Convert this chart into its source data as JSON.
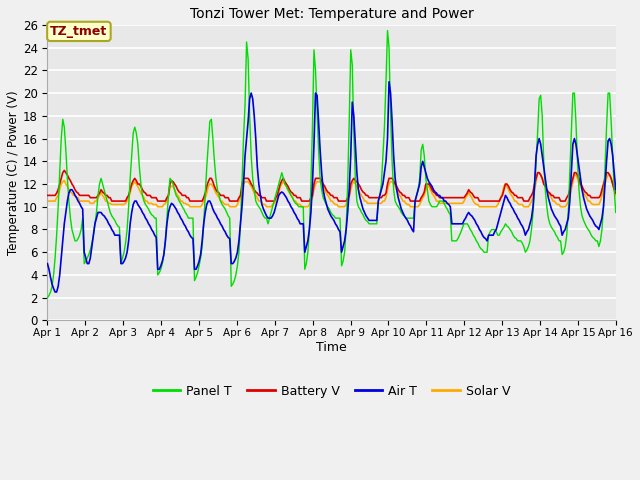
{
  "title": "Tonzi Tower Met: Temperature and Power",
  "xlabel": "Time",
  "ylabel": "Temperature (C) / Power (V)",
  "annotation": "TZ_tmet",
  "ylim": [
    0,
    26
  ],
  "yticks": [
    0,
    2,
    4,
    6,
    8,
    10,
    12,
    14,
    16,
    18,
    20,
    22,
    24,
    26
  ],
  "xtick_labels": [
    "Apr 1",
    "Apr 2",
    "Apr 3",
    "Apr 4",
    "Apr 5",
    "Apr 6",
    "Apr 7",
    "Apr 8",
    "Apr 9",
    "Apr 10",
    "Apr 11",
    "Apr 12",
    "Apr 13",
    "Apr 14",
    "Apr 15",
    "Apr 16"
  ],
  "colors": {
    "panel_t": "#00dd00",
    "battery_v": "#dd0000",
    "air_t": "#0000dd",
    "solar_v": "#ffaa00"
  },
  "legend": [
    "Panel T",
    "Battery V",
    "Air T",
    "Solar V"
  ],
  "fig_bg": "#f0f0f0",
  "plot_bg": "#e8e8e8",
  "grid_color": "#ffffff",
  "panel_t": [
    2.0,
    2.2,
    2.5,
    3.0,
    4.0,
    5.5,
    7.5,
    10.0,
    13.0,
    16.0,
    17.7,
    17.0,
    15.0,
    12.5,
    10.5,
    9.0,
    8.0,
    7.5,
    7.0,
    7.0,
    7.2,
    7.5,
    8.0,
    9.0,
    5.0,
    5.2,
    5.5,
    5.8,
    6.2,
    6.8,
    7.5,
    8.5,
    9.5,
    11.0,
    12.0,
    12.5,
    12.0,
    11.5,
    11.0,
    10.5,
    10.0,
    9.5,
    9.2,
    9.0,
    8.8,
    8.5,
    8.3,
    8.2,
    5.0,
    5.5,
    6.0,
    6.8,
    8.0,
    10.0,
    12.5,
    14.5,
    16.5,
    17.0,
    16.5,
    15.5,
    13.5,
    12.0,
    11.0,
    10.5,
    10.2,
    10.0,
    9.8,
    9.5,
    9.3,
    9.2,
    9.0,
    9.0,
    4.0,
    4.2,
    4.5,
    5.0,
    5.8,
    7.0,
    9.0,
    11.0,
    12.5,
    12.3,
    12.0,
    11.5,
    11.0,
    10.8,
    10.5,
    10.3,
    10.0,
    9.8,
    9.5,
    9.3,
    9.0,
    9.0,
    9.0,
    9.0,
    3.5,
    3.8,
    4.2,
    4.8,
    5.5,
    6.5,
    8.5,
    11.0,
    13.5,
    15.5,
    17.5,
    17.7,
    16.0,
    14.0,
    12.5,
    11.5,
    11.0,
    10.5,
    10.2,
    10.0,
    9.8,
    9.5,
    9.2,
    9.0,
    3.0,
    3.2,
    3.5,
    4.0,
    4.8,
    6.0,
    8.5,
    12.0,
    16.0,
    19.0,
    24.5,
    23.0,
    18.0,
    14.5,
    12.5,
    11.5,
    10.5,
    10.2,
    10.0,
    9.8,
    9.5,
    9.2,
    9.0,
    9.0,
    8.5,
    9.0,
    9.5,
    10.0,
    10.5,
    11.0,
    11.5,
    12.0,
    12.5,
    13.0,
    12.5,
    12.0,
    11.8,
    11.5,
    11.3,
    11.0,
    10.8,
    10.5,
    10.3,
    10.2,
    10.0,
    10.0,
    10.0,
    10.0,
    4.5,
    5.0,
    6.0,
    8.0,
    12.0,
    17.0,
    23.8,
    22.0,
    18.5,
    15.0,
    12.5,
    11.5,
    10.8,
    10.5,
    10.2,
    10.0,
    9.8,
    9.5,
    9.3,
    9.2,
    9.0,
    9.0,
    9.0,
    9.0,
    4.8,
    5.2,
    6.0,
    8.0,
    12.0,
    17.5,
    23.8,
    22.5,
    16.5,
    12.5,
    10.5,
    10.0,
    9.8,
    9.5,
    9.3,
    9.0,
    8.8,
    8.7,
    8.5,
    8.5,
    8.5,
    8.5,
    8.5,
    8.5,
    10.5,
    11.0,
    12.0,
    14.5,
    17.0,
    21.0,
    25.5,
    24.0,
    18.0,
    14.0,
    11.5,
    10.5,
    10.2,
    10.0,
    9.8,
    9.5,
    9.3,
    9.2,
    9.0,
    9.0,
    9.0,
    9.0,
    9.0,
    9.0,
    10.5,
    11.0,
    11.5,
    12.5,
    15.0,
    15.5,
    14.5,
    12.5,
    11.5,
    10.5,
    10.2,
    10.0,
    10.0,
    10.0,
    10.0,
    10.2,
    10.5,
    10.5,
    10.5,
    10.3,
    10.0,
    9.8,
    9.5,
    9.3,
    7.0,
    7.0,
    7.0,
    7.0,
    7.2,
    7.5,
    7.8,
    8.2,
    8.5,
    8.5,
    8.5,
    8.3,
    8.0,
    7.8,
    7.5,
    7.3,
    7.0,
    6.8,
    6.5,
    6.3,
    6.2,
    6.0,
    6.0,
    6.0,
    7.5,
    7.8,
    8.0,
    8.0,
    8.0,
    7.8,
    7.5,
    7.5,
    7.8,
    8.0,
    8.2,
    8.5,
    8.3,
    8.2,
    8.0,
    7.8,
    7.5,
    7.3,
    7.2,
    7.0,
    7.0,
    7.0,
    6.8,
    6.5,
    6.0,
    6.2,
    6.5,
    7.0,
    8.0,
    9.5,
    11.5,
    14.0,
    16.5,
    19.5,
    19.8,
    18.0,
    14.0,
    11.5,
    10.0,
    9.0,
    8.5,
    8.2,
    8.0,
    7.8,
    7.5,
    7.3,
    7.0,
    7.0,
    5.8,
    6.0,
    6.5,
    7.5,
    9.5,
    13.0,
    16.5,
    20.0,
    20.0,
    17.5,
    14.0,
    11.5,
    10.0,
    9.2,
    8.8,
    8.5,
    8.2,
    8.0,
    7.8,
    7.5,
    7.3,
    7.2,
    7.0,
    7.0,
    6.5,
    7.0,
    8.0,
    10.0,
    13.5,
    17.0,
    20.0,
    20.0,
    17.5,
    14.5,
    11.5,
    9.5
  ],
  "battery_v": [
    11.0,
    11.0,
    11.0,
    11.0,
    11.0,
    11.0,
    11.2,
    11.5,
    12.0,
    12.5,
    13.0,
    13.2,
    13.0,
    12.8,
    12.5,
    12.3,
    12.0,
    11.8,
    11.5,
    11.3,
    11.2,
    11.0,
    11.0,
    11.0,
    11.0,
    11.0,
    11.0,
    11.0,
    10.8,
    10.8,
    10.8,
    10.8,
    10.8,
    11.0,
    11.2,
    11.5,
    11.3,
    11.2,
    11.0,
    11.0,
    10.8,
    10.8,
    10.5,
    10.5,
    10.5,
    10.5,
    10.5,
    10.5,
    10.5,
    10.5,
    10.5,
    10.5,
    10.8,
    11.0,
    11.5,
    12.0,
    12.3,
    12.5,
    12.3,
    12.0,
    12.0,
    11.8,
    11.5,
    11.3,
    11.2,
    11.0,
    11.0,
    11.0,
    10.8,
    10.8,
    10.8,
    10.8,
    10.5,
    10.5,
    10.5,
    10.5,
    10.5,
    10.5,
    10.8,
    11.0,
    12.0,
    12.3,
    12.2,
    12.0,
    11.8,
    11.5,
    11.3,
    11.2,
    11.0,
    11.0,
    11.0,
    10.8,
    10.8,
    10.5,
    10.5,
    10.5,
    10.5,
    10.5,
    10.5,
    10.5,
    10.5,
    10.5,
    10.8,
    11.2,
    11.8,
    12.2,
    12.5,
    12.5,
    12.2,
    11.8,
    11.5,
    11.3,
    11.2,
    11.0,
    11.0,
    11.0,
    10.8,
    10.8,
    10.8,
    10.5,
    10.5,
    10.5,
    10.5,
    10.5,
    10.5,
    10.8,
    11.0,
    12.0,
    12.5,
    12.5,
    12.5,
    12.5,
    12.3,
    12.0,
    11.8,
    11.5,
    11.3,
    11.2,
    11.0,
    11.0,
    10.8,
    10.8,
    10.8,
    10.5,
    10.5,
    10.5,
    10.5,
    10.5,
    10.5,
    10.8,
    11.0,
    11.5,
    12.0,
    12.3,
    12.5,
    12.2,
    12.0,
    11.8,
    11.5,
    11.3,
    11.2,
    11.0,
    11.0,
    10.8,
    10.8,
    10.8,
    10.5,
    10.5,
    10.5,
    10.5,
    10.5,
    10.5,
    10.8,
    11.0,
    12.0,
    12.5,
    12.5,
    12.5,
    12.5,
    12.3,
    12.0,
    11.8,
    11.5,
    11.3,
    11.2,
    11.0,
    11.0,
    10.8,
    10.8,
    10.8,
    10.5,
    10.5,
    10.5,
    10.5,
    10.5,
    10.5,
    10.8,
    11.0,
    12.0,
    12.3,
    12.5,
    12.3,
    12.2,
    12.0,
    11.8,
    11.5,
    11.3,
    11.2,
    11.0,
    11.0,
    10.8,
    10.8,
    10.8,
    10.8,
    10.8,
    10.8,
    10.8,
    10.8,
    10.8,
    11.0,
    11.0,
    11.2,
    12.0,
    12.5,
    12.5,
    12.5,
    12.3,
    12.0,
    11.8,
    11.5,
    11.3,
    11.2,
    11.0,
    11.0,
    10.8,
    10.8,
    10.8,
    10.5,
    10.5,
    10.5,
    10.5,
    10.5,
    10.5,
    10.5,
    10.8,
    11.0,
    11.3,
    12.0,
    12.0,
    12.0,
    11.8,
    11.5,
    11.3,
    11.2,
    11.0,
    11.0,
    10.8,
    10.8,
    10.8,
    10.8,
    10.8,
    10.8,
    10.8,
    10.8,
    10.8,
    10.8,
    10.8,
    10.8,
    10.8,
    10.8,
    10.8,
    10.8,
    10.8,
    11.0,
    11.2,
    11.5,
    11.3,
    11.2,
    11.0,
    10.8,
    10.8,
    10.8,
    10.5,
    10.5,
    10.5,
    10.5,
    10.5,
    10.5,
    10.5,
    10.5,
    10.5,
    10.5,
    10.5,
    10.5,
    10.5,
    10.5,
    10.8,
    11.0,
    11.5,
    12.0,
    12.0,
    11.8,
    11.5,
    11.3,
    11.2,
    11.0,
    11.0,
    10.8,
    10.8,
    10.8,
    10.8,
    10.5,
    10.5,
    10.5,
    10.5,
    10.8,
    11.0,
    11.3,
    12.0,
    12.5,
    13.0,
    13.0,
    12.8,
    12.5,
    12.0,
    11.8,
    11.5,
    11.3,
    11.2,
    11.0,
    11.0,
    10.8,
    10.8,
    10.8,
    10.8,
    10.5,
    10.5,
    10.5,
    10.5,
    10.8,
    11.0,
    11.5,
    12.0,
    12.5,
    13.0,
    13.0,
    12.8,
    12.5,
    12.0,
    11.8,
    11.5,
    11.3,
    11.2,
    11.0,
    11.0,
    10.8,
    10.8,
    10.8,
    10.8,
    10.8,
    10.8,
    11.0,
    11.5,
    12.0,
    12.5,
    13.0,
    13.0,
    12.8,
    12.5,
    12.0,
    11.5,
    11.2
  ],
  "air_t": [
    5.0,
    4.5,
    3.8,
    3.2,
    2.8,
    2.5,
    2.5,
    3.0,
    4.0,
    5.5,
    7.0,
    8.5,
    9.5,
    10.5,
    11.2,
    11.5,
    11.5,
    11.3,
    11.0,
    10.8,
    10.5,
    10.3,
    10.0,
    9.8,
    6.0,
    5.5,
    5.0,
    5.0,
    5.5,
    6.5,
    7.5,
    8.5,
    9.0,
    9.5,
    9.5,
    9.5,
    9.3,
    9.2,
    9.0,
    8.8,
    8.5,
    8.3,
    8.0,
    7.8,
    7.5,
    7.5,
    7.5,
    7.5,
    5.0,
    5.0,
    5.2,
    5.5,
    6.0,
    7.0,
    8.5,
    9.5,
    10.2,
    10.5,
    10.5,
    10.2,
    10.0,
    9.8,
    9.5,
    9.3,
    9.0,
    8.8,
    8.5,
    8.3,
    8.0,
    7.8,
    7.5,
    7.3,
    4.5,
    4.5,
    4.8,
    5.2,
    5.8,
    7.0,
    8.5,
    9.5,
    10.0,
    10.3,
    10.2,
    10.0,
    9.8,
    9.5,
    9.3,
    9.0,
    8.8,
    8.5,
    8.3,
    8.0,
    7.8,
    7.5,
    7.3,
    7.2,
    4.5,
    4.5,
    4.8,
    5.2,
    5.8,
    7.0,
    8.5,
    9.5,
    10.2,
    10.5,
    10.5,
    10.2,
    9.8,
    9.5,
    9.3,
    9.0,
    8.8,
    8.5,
    8.3,
    8.0,
    7.8,
    7.5,
    7.3,
    7.2,
    5.0,
    5.0,
    5.2,
    5.5,
    6.0,
    7.0,
    8.5,
    10.0,
    12.0,
    14.5,
    16.0,
    17.5,
    19.5,
    20.0,
    19.5,
    18.0,
    16.0,
    13.5,
    12.0,
    11.0,
    10.2,
    9.8,
    9.5,
    9.2,
    9.0,
    9.0,
    9.0,
    9.2,
    9.5,
    10.0,
    10.5,
    11.0,
    11.2,
    11.3,
    11.2,
    11.0,
    10.8,
    10.5,
    10.3,
    10.0,
    9.8,
    9.5,
    9.3,
    9.0,
    8.8,
    8.5,
    8.5,
    8.5,
    6.0,
    6.5,
    7.0,
    8.0,
    9.5,
    12.0,
    15.5,
    20.0,
    19.8,
    17.5,
    15.0,
    13.0,
    11.5,
    10.8,
    10.3,
    9.8,
    9.5,
    9.2,
    9.0,
    8.8,
    8.5,
    8.3,
    8.0,
    7.8,
    6.0,
    6.5,
    7.0,
    8.0,
    9.5,
    11.5,
    14.5,
    19.2,
    18.0,
    15.5,
    13.0,
    11.5,
    10.8,
    10.3,
    9.8,
    9.5,
    9.2,
    9.0,
    8.8,
    8.8,
    8.8,
    8.8,
    8.8,
    8.8,
    10.5,
    11.0,
    11.5,
    12.0,
    13.0,
    14.0,
    16.0,
    21.0,
    20.0,
    17.5,
    14.5,
    12.5,
    11.5,
    10.8,
    10.3,
    9.8,
    9.5,
    9.2,
    9.0,
    8.8,
    8.5,
    8.3,
    8.0,
    7.8,
    10.5,
    11.0,
    11.5,
    12.0,
    13.5,
    14.0,
    13.5,
    13.0,
    12.5,
    12.2,
    12.0,
    11.8,
    11.5,
    11.3,
    11.2,
    11.0,
    11.0,
    10.8,
    10.8,
    10.5,
    10.5,
    10.3,
    10.2,
    10.0,
    8.5,
    8.5,
    8.5,
    8.5,
    8.5,
    8.5,
    8.5,
    8.5,
    8.8,
    9.0,
    9.3,
    9.5,
    9.3,
    9.2,
    9.0,
    8.8,
    8.5,
    8.3,
    8.0,
    7.8,
    7.5,
    7.3,
    7.2,
    7.0,
    7.5,
    7.5,
    7.5,
    7.5,
    7.8,
    8.0,
    8.5,
    9.0,
    9.5,
    10.0,
    10.5,
    11.0,
    10.8,
    10.5,
    10.3,
    10.0,
    9.8,
    9.5,
    9.3,
    9.0,
    8.8,
    8.5,
    8.3,
    8.0,
    7.5,
    7.8,
    8.0,
    8.5,
    9.0,
    10.0,
    12.0,
    14.5,
    15.5,
    16.0,
    15.5,
    14.5,
    13.5,
    12.5,
    11.5,
    10.8,
    10.3,
    9.8,
    9.5,
    9.2,
    9.0,
    8.8,
    8.5,
    8.3,
    7.5,
    7.8,
    8.0,
    8.5,
    9.0,
    10.5,
    13.0,
    15.5,
    16.0,
    15.5,
    14.5,
    13.5,
    12.5,
    11.5,
    10.8,
    10.3,
    9.8,
    9.5,
    9.2,
    9.0,
    8.8,
    8.5,
    8.3,
    8.2,
    8.0,
    8.5,
    9.0,
    10.0,
    12.0,
    14.0,
    15.8,
    16.0,
    15.5,
    14.5,
    13.0,
    11.5
  ],
  "solar_v": [
    10.5,
    10.5,
    10.5,
    10.5,
    10.5,
    10.5,
    10.8,
    11.0,
    11.5,
    12.0,
    12.2,
    12.3,
    12.0,
    11.8,
    11.5,
    11.3,
    11.2,
    11.0,
    11.0,
    10.8,
    10.8,
    10.5,
    10.5,
    10.5,
    10.5,
    10.5,
    10.5,
    10.5,
    10.3,
    10.3,
    10.3,
    10.5,
    10.5,
    10.8,
    11.0,
    11.3,
    11.0,
    10.8,
    10.5,
    10.5,
    10.3,
    10.3,
    10.2,
    10.2,
    10.2,
    10.2,
    10.2,
    10.2,
    10.2,
    10.2,
    10.2,
    10.3,
    10.5,
    10.8,
    11.2,
    11.8,
    12.0,
    12.2,
    12.0,
    11.8,
    11.5,
    11.2,
    11.0,
    10.8,
    10.5,
    10.5,
    10.3,
    10.3,
    10.3,
    10.2,
    10.2,
    10.2,
    10.0,
    10.0,
    10.0,
    10.0,
    10.2,
    10.3,
    10.5,
    11.0,
    11.8,
    11.8,
    11.8,
    11.5,
    11.2,
    11.0,
    10.8,
    10.5,
    10.5,
    10.3,
    10.3,
    10.2,
    10.2,
    10.0,
    10.0,
    10.0,
    10.0,
    10.0,
    10.0,
    10.0,
    10.0,
    10.2,
    10.5,
    10.8,
    11.2,
    11.8,
    12.0,
    12.0,
    11.8,
    11.5,
    11.2,
    11.0,
    10.8,
    10.5,
    10.5,
    10.3,
    10.2,
    10.2,
    10.2,
    10.0,
    10.0,
    10.0,
    10.0,
    10.0,
    10.2,
    10.5,
    10.8,
    11.5,
    12.0,
    12.2,
    12.2,
    12.2,
    12.0,
    11.8,
    11.5,
    11.2,
    11.0,
    10.8,
    10.5,
    10.5,
    10.3,
    10.2,
    10.2,
    10.0,
    10.0,
    10.0,
    10.0,
    10.2,
    10.3,
    10.5,
    10.8,
    11.2,
    11.8,
    12.0,
    12.2,
    12.0,
    11.8,
    11.5,
    11.2,
    11.0,
    10.8,
    10.5,
    10.5,
    10.3,
    10.2,
    10.2,
    10.0,
    10.0,
    10.0,
    10.0,
    10.0,
    10.2,
    10.5,
    10.8,
    11.5,
    12.0,
    12.2,
    12.2,
    12.2,
    12.0,
    11.8,
    11.5,
    11.2,
    11.0,
    10.8,
    10.5,
    10.5,
    10.3,
    10.2,
    10.2,
    10.0,
    10.0,
    10.0,
    10.0,
    10.0,
    10.2,
    10.5,
    10.8,
    11.5,
    12.0,
    12.2,
    12.0,
    11.8,
    11.5,
    11.2,
    11.0,
    10.8,
    10.5,
    10.5,
    10.3,
    10.3,
    10.3,
    10.3,
    10.3,
    10.3,
    10.3,
    10.3,
    10.3,
    10.3,
    10.5,
    10.5,
    10.8,
    11.5,
    12.0,
    12.2,
    12.2,
    12.0,
    11.8,
    11.5,
    11.2,
    11.0,
    10.8,
    10.5,
    10.5,
    10.3,
    10.2,
    10.2,
    10.0,
    10.0,
    10.0,
    10.0,
    10.0,
    10.0,
    10.2,
    10.5,
    10.8,
    11.0,
    11.5,
    11.8,
    11.8,
    11.5,
    11.2,
    11.0,
    10.8,
    10.5,
    10.5,
    10.3,
    10.3,
    10.3,
    10.3,
    10.3,
    10.3,
    10.3,
    10.3,
    10.3,
    10.3,
    10.3,
    10.3,
    10.3,
    10.3,
    10.3,
    10.3,
    10.5,
    10.8,
    11.0,
    11.3,
    11.0,
    10.8,
    10.5,
    10.3,
    10.2,
    10.2,
    10.0,
    10.0,
    10.0,
    10.0,
    10.0,
    10.0,
    10.0,
    10.0,
    10.0,
    10.0,
    10.0,
    10.0,
    10.2,
    10.5,
    10.8,
    11.2,
    11.8,
    12.0,
    11.8,
    11.5,
    11.2,
    11.0,
    10.8,
    10.5,
    10.5,
    10.3,
    10.2,
    10.2,
    10.2,
    10.0,
    10.0,
    10.0,
    10.0,
    10.2,
    10.5,
    10.8,
    11.5,
    12.2,
    13.0,
    13.0,
    12.8,
    12.5,
    12.0,
    11.8,
    11.5,
    11.2,
    11.0,
    10.8,
    10.5,
    10.5,
    10.3,
    10.2,
    10.2,
    10.0,
    10.0,
    10.0,
    10.0,
    10.2,
    10.5,
    10.8,
    11.5,
    12.2,
    12.8,
    12.8,
    12.5,
    12.2,
    11.8,
    11.5,
    11.2,
    11.0,
    10.8,
    10.5,
    10.5,
    10.3,
    10.2,
    10.2,
    10.2,
    10.2,
    10.2,
    10.5,
    11.0,
    11.5,
    12.0,
    12.5,
    12.8,
    12.8,
    12.5,
    12.0,
    11.5,
    11.0
  ]
}
